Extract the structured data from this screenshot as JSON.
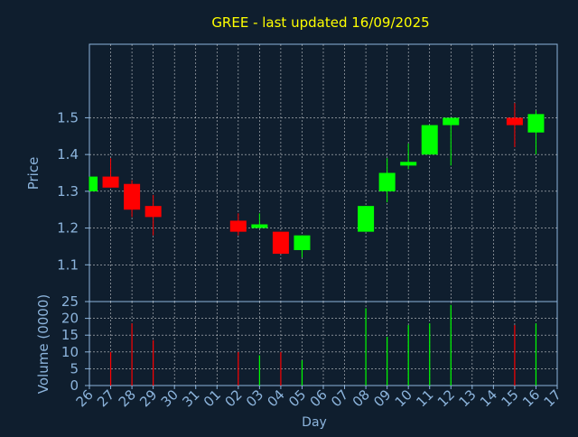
{
  "chart_data": [
    {
      "type": "candlestick",
      "title": "GREE - last updated 16/09/2025",
      "ylabel": "Price",
      "ylim": [
        1.0,
        1.7
      ],
      "yticks": [
        "1.1",
        "1.2",
        "1.3",
        "1.4",
        "1.5"
      ],
      "grid": true,
      "colors": {
        "up": "#00ff00",
        "down": "#ff0000",
        "title": "#ffff00",
        "axis_text": "#8cb4dc",
        "background": "#0f1e2e",
        "grid": "#ffffff"
      },
      "series": [
        {
          "day": "26",
          "open": 1.3,
          "high": 1.34,
          "low": 1.3,
          "close": 1.34
        },
        {
          "day": "27",
          "open": 1.34,
          "high": 1.39,
          "low": 1.31,
          "close": 1.31
        },
        {
          "day": "28",
          "open": 1.32,
          "high": 1.33,
          "low": 1.23,
          "close": 1.25
        },
        {
          "day": "29",
          "open": 1.26,
          "high": 1.29,
          "low": 1.18,
          "close": 1.23
        },
        {
          "day": "02",
          "open": 1.22,
          "high": 1.24,
          "low": 1.18,
          "close": 1.19
        },
        {
          "day": "03",
          "open": 1.2,
          "high": 1.24,
          "low": 1.2,
          "close": 1.21
        },
        {
          "day": "04",
          "open": 1.19,
          "high": 1.19,
          "low": 1.13,
          "close": 1.13
        },
        {
          "day": "05",
          "open": 1.14,
          "high": 1.18,
          "low": 1.12,
          "close": 1.18
        },
        {
          "day": "08",
          "open": 1.19,
          "high": 1.26,
          "low": 1.19,
          "close": 1.26
        },
        {
          "day": "09",
          "open": 1.3,
          "high": 1.39,
          "low": 1.27,
          "close": 1.35
        },
        {
          "day": "10",
          "open": 1.37,
          "high": 1.43,
          "low": 1.36,
          "close": 1.38
        },
        {
          "day": "11",
          "open": 1.4,
          "high": 1.48,
          "low": 1.4,
          "close": 1.48
        },
        {
          "day": "12",
          "open": 1.48,
          "high": 1.5,
          "low": 1.37,
          "close": 1.5
        },
        {
          "day": "15",
          "open": 1.5,
          "high": 1.54,
          "low": 1.42,
          "close": 1.48
        },
        {
          "day": "16",
          "open": 1.46,
          "high": 1.52,
          "low": 1.4,
          "close": 1.51
        }
      ]
    },
    {
      "type": "bar",
      "ylabel": "Volume (0000)",
      "xlabel": "Day",
      "ylim": [
        0,
        25
      ],
      "yticks": [
        "0",
        "5",
        "10",
        "15",
        "20",
        "25"
      ],
      "categories": [
        "26",
        "27",
        "28",
        "29",
        "30",
        "31",
        "01",
        "02",
        "03",
        "04",
        "05",
        "06",
        "07",
        "08",
        "09",
        "10",
        "11",
        "12",
        "13",
        "14",
        "15",
        "16",
        "17"
      ],
      "values": [
        0,
        10,
        18.5,
        13.5,
        0,
        0,
        0,
        10,
        9,
        10,
        7.5,
        0,
        0,
        23,
        14.5,
        18,
        18.5,
        24,
        0,
        0,
        18,
        18.5,
        0
      ],
      "bar_colors": [
        "none",
        "red",
        "red",
        "red",
        "none",
        "none",
        "none",
        "red",
        "green",
        "red",
        "green",
        "none",
        "none",
        "green",
        "green",
        "green",
        "green",
        "green",
        "none",
        "none",
        "red",
        "green",
        "none"
      ]
    }
  ]
}
